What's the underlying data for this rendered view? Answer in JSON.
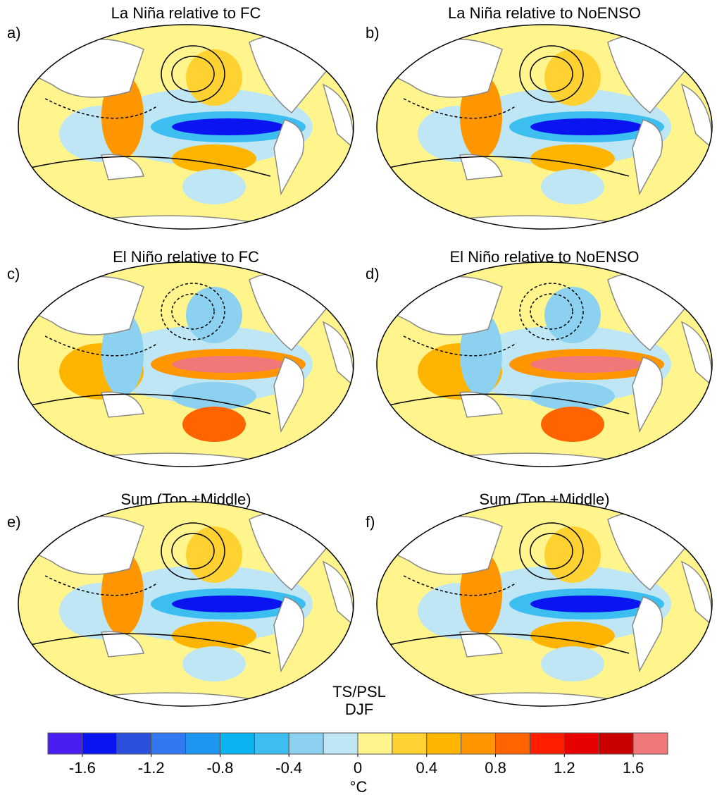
{
  "panels": [
    {
      "label": "a)",
      "title": "La Niña relative to FC"
    },
    {
      "label": "b)",
      "title": "La Niña relative to NoENSO"
    },
    {
      "label": "c)",
      "title": "El Niño relative to FC"
    },
    {
      "label": "d)",
      "title": "El Niño relative to NoENSO"
    },
    {
      "label": "e)",
      "title": "Sum (Top +Middle)"
    },
    {
      "label": "f)",
      "title": "Sum (Top +Middle)"
    }
  ],
  "annotation": [
    "TS/PSL",
    "DJF"
  ],
  "colorbar": {
    "lim": [
      -1.8,
      1.8
    ],
    "ticks": [
      -1.6,
      -1.2,
      -0.8,
      -0.4,
      0,
      0.4,
      0.8,
      1.2,
      1.6
    ],
    "colors": [
      "#4a1ef0",
      "#0a14f0",
      "#2a50dc",
      "#3278f0",
      "#1e96f0",
      "#0ab4f0",
      "#3cbef0",
      "#8cd2f0",
      "#bee6f5",
      "#fff58c",
      "#ffd232",
      "#ffb400",
      "#ff9600",
      "#ff6400",
      "#ff1e00",
      "#e60000",
      "#c80000",
      "#f07878"
    ],
    "unit": "°C"
  }
}
